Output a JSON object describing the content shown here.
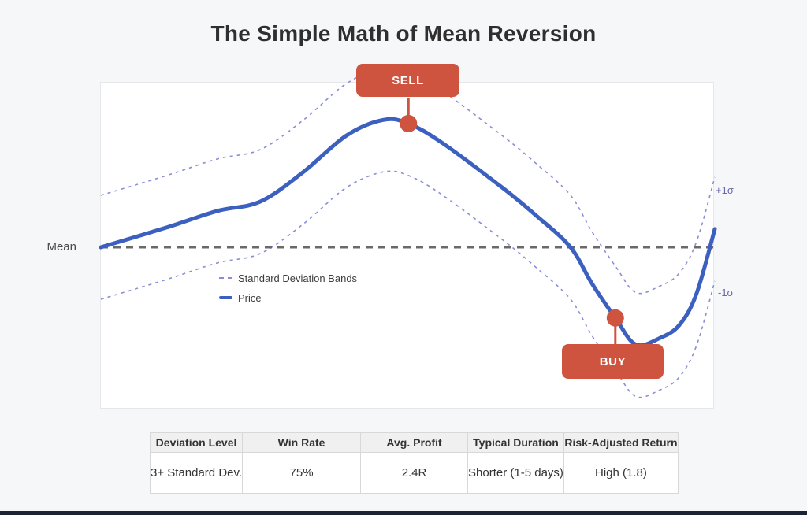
{
  "title": "The Simple Math of Mean Reversion",
  "chart": {
    "mean_label": "Mean",
    "sigma_labels": {
      "upper": "+1σ",
      "lower": "-1σ"
    },
    "legend": {
      "bands": "Standard Deviation Bands",
      "price": "Price"
    },
    "sell_label": "SELL",
    "buy_label": "BUY",
    "colors": {
      "price": "#3c60c0",
      "bands": "#8a8ed6",
      "mean_line": "#6a6a6a",
      "accent_red": "#ce5440",
      "sigma_text": "#666aa8",
      "panel_background": "#ffffff",
      "page_background": "#f6f7f9",
      "footer_bar": "#1c2433"
    }
  },
  "chart_data": {
    "type": "line",
    "title": "The Simple Math of Mean Reversion",
    "xlabel": "",
    "ylabel": "",
    "x_unit": "time (unlabeled axis, percent of chart width)",
    "y_unit": "standard deviations from mean",
    "mean": 0,
    "grid": false,
    "legend_position": "middle-left",
    "series": [
      {
        "name": "Price",
        "style": "solid",
        "x_pct": [
          0,
          10.7,
          19,
          26,
          33,
          40,
          46,
          50.1,
          55.7,
          65.9,
          71,
          76.5,
          80,
          83.8,
          87.1,
          91,
          94.2,
          97,
          100
        ],
        "y_sigma": [
          0,
          0.38,
          0.7,
          0.88,
          1.45,
          2.15,
          2.45,
          2.38,
          2.0,
          1.1,
          0.6,
          0,
          -0.7,
          -1.36,
          -1.87,
          -1.75,
          -1.5,
          -0.9,
          0.35
        ]
      }
    ],
    "bands": {
      "name": "Standard Deviation Bands",
      "style": "dashed",
      "offset_sigma": 1
    },
    "mean_line": {
      "label": "Mean",
      "y_sigma": 0,
      "style": "dashed"
    },
    "annotations": [
      {
        "label": "SELL",
        "x_pct": 50.1,
        "y_sigma": 2.38
      },
      {
        "label": "BUY",
        "x_pct": 83.8,
        "y_sigma": -1.36
      }
    ]
  },
  "table": {
    "headers": [
      "Deviation Level",
      "Win Rate",
      "Avg. Profit",
      "Typical Duration",
      "Risk-Adjusted Return"
    ],
    "rows": [
      [
        "3+ Standard Dev.",
        "75%",
        "2.4R",
        "Shorter (1-5 days)",
        "High (1.8)"
      ]
    ]
  }
}
